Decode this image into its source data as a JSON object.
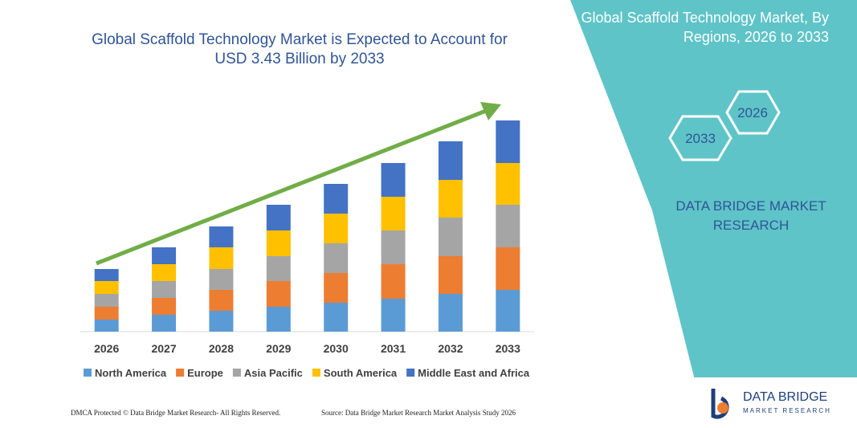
{
  "chart_data": {
    "type": "bar",
    "stacked": true,
    "title": "Global Scaffold Technology Market is Expected to Account for USD 3.43 Billion by 2033",
    "categories": [
      "2026",
      "2027",
      "2028",
      "2029",
      "2030",
      "2031",
      "2032",
      "2033"
    ],
    "series": [
      {
        "name": "North America",
        "color": "#5b9bd5",
        "values": [
          15,
          21,
          26,
          31,
          36,
          41,
          47,
          52
        ]
      },
      {
        "name": "Europe",
        "color": "#ed7d31",
        "values": [
          16,
          21,
          26,
          32,
          37,
          43,
          47,
          53
        ]
      },
      {
        "name": "Asia Pacific",
        "color": "#a5a5a5",
        "values": [
          16,
          21,
          26,
          31,
          37,
          42,
          48,
          53
        ]
      },
      {
        "name": "South America",
        "color": "#ffc000",
        "values": [
          16,
          21,
          27,
          32,
          37,
          42,
          47,
          52
        ]
      },
      {
        "name": "Middle East and Africa",
        "color": "#4472c4",
        "values": [
          15,
          21,
          26,
          32,
          37,
          42,
          48,
          53
        ]
      }
    ],
    "legend": "bottom"
  },
  "panel": {
    "title": "Global Scaffold Technology Market, By Regions, 2026 to 2033",
    "hexagons": [
      "2026",
      "2033"
    ],
    "brand": "DATA BRIDGE MARKET RESEARCH"
  },
  "logo": {
    "name": "DATA BRIDGE",
    "tagline": "MARKET RESEARCH"
  },
  "footer": {
    "left": "DMCA Protected © Data Bridge Market Research- All Rights Reserved.",
    "right": "Source: Data Bridge Market Research Market Analysis Study 2026"
  }
}
